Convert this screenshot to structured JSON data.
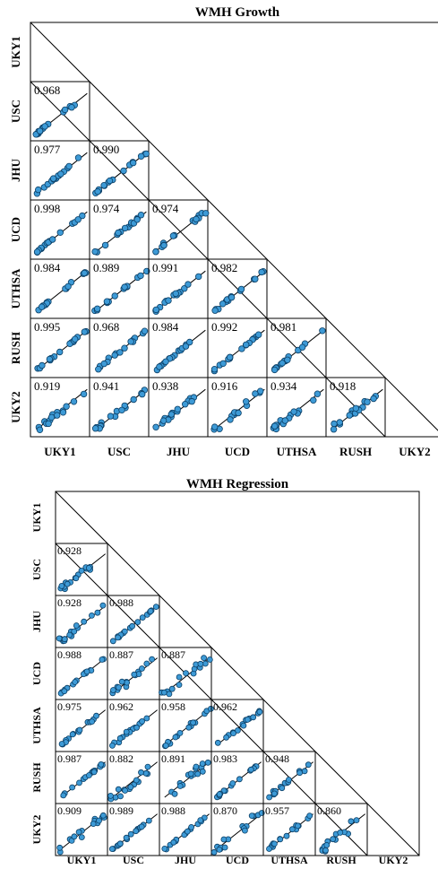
{
  "chart_data": [
    {
      "type": "scatter-matrix",
      "title": "WMH Growth",
      "sites": [
        "UKY1",
        "USC",
        "JHU",
        "UCD",
        "UTHSA",
        "RUSH",
        "UKY2"
      ],
      "correlations": [
        {
          "row": "USC",
          "col": "UKY1",
          "value": "0.968"
        },
        {
          "row": "JHU",
          "col": "UKY1",
          "value": "0.977"
        },
        {
          "row": "JHU",
          "col": "USC",
          "value": "0.990"
        },
        {
          "row": "UCD",
          "col": "UKY1",
          "value": "0.998"
        },
        {
          "row": "UCD",
          "col": "USC",
          "value": "0.974"
        },
        {
          "row": "UCD",
          "col": "JHU",
          "value": "0.974"
        },
        {
          "row": "UTHSA",
          "col": "UKY1",
          "value": "0.984"
        },
        {
          "row": "UTHSA",
          "col": "USC",
          "value": "0.989"
        },
        {
          "row": "UTHSA",
          "col": "JHU",
          "value": "0.991"
        },
        {
          "row": "UTHSA",
          "col": "UCD",
          "value": "0.982"
        },
        {
          "row": "RUSH",
          "col": "UKY1",
          "value": "0.995"
        },
        {
          "row": "RUSH",
          "col": "USC",
          "value": "0.968"
        },
        {
          "row": "RUSH",
          "col": "JHU",
          "value": "0.984"
        },
        {
          "row": "RUSH",
          "col": "UCD",
          "value": "0.992"
        },
        {
          "row": "RUSH",
          "col": "UTHSA",
          "value": "0.981"
        },
        {
          "row": "UKY2",
          "col": "UKY1",
          "value": "0.919"
        },
        {
          "row": "UKY2",
          "col": "USC",
          "value": "0.941"
        },
        {
          "row": "UKY2",
          "col": "JHU",
          "value": "0.938"
        },
        {
          "row": "UKY2",
          "col": "UCD",
          "value": "0.916"
        },
        {
          "row": "UKY2",
          "col": "UTHSA",
          "value": "0.934"
        },
        {
          "row": "UKY2",
          "col": "RUSH",
          "value": "0.918"
        }
      ]
    },
    {
      "type": "scatter-matrix",
      "title": "WMH Regression",
      "sites": [
        "UKY1",
        "USC",
        "JHU",
        "UCD",
        "UTHSA",
        "RUSH",
        "UKY2"
      ],
      "correlations": [
        {
          "row": "USC",
          "col": "UKY1",
          "value": "0.928"
        },
        {
          "row": "JHU",
          "col": "UKY1",
          "value": "0.928"
        },
        {
          "row": "JHU",
          "col": "USC",
          "value": "0.988"
        },
        {
          "row": "UCD",
          "col": "UKY1",
          "value": "0.988"
        },
        {
          "row": "UCD",
          "col": "USC",
          "value": "0.887"
        },
        {
          "row": "UCD",
          "col": "JHU",
          "value": "0.887"
        },
        {
          "row": "UTHSA",
          "col": "UKY1",
          "value": "0.975"
        },
        {
          "row": "UTHSA",
          "col": "USC",
          "value": "0.962"
        },
        {
          "row": "UTHSA",
          "col": "JHU",
          "value": "0.958"
        },
        {
          "row": "UTHSA",
          "col": "UCD",
          "value": "0.962"
        },
        {
          "row": "RUSH",
          "col": "UKY1",
          "value": "0.987"
        },
        {
          "row": "RUSH",
          "col": "USC",
          "value": "0.882"
        },
        {
          "row": "RUSH",
          "col": "JHU",
          "value": "0.891"
        },
        {
          "row": "RUSH",
          "col": "UCD",
          "value": "0.983"
        },
        {
          "row": "RUSH",
          "col": "UTHSA",
          "value": "0.948"
        },
        {
          "row": "UKY2",
          "col": "UKY1",
          "value": "0.909"
        },
        {
          "row": "UKY2",
          "col": "USC",
          "value": "0.989"
        },
        {
          "row": "UKY2",
          "col": "JHU",
          "value": "0.988"
        },
        {
          "row": "UKY2",
          "col": "UCD",
          "value": "0.870"
        },
        {
          "row": "UKY2",
          "col": "UTHSA",
          "value": "0.957"
        },
        {
          "row": "UKY2",
          "col": "RUSH",
          "value": "0.860"
        }
      ]
    }
  ],
  "colors": {
    "point_fill": "#3d9ad6",
    "point_stroke": "#0b3f66",
    "line": "#000000"
  },
  "icons": {
    "marker": "circle-marker"
  }
}
